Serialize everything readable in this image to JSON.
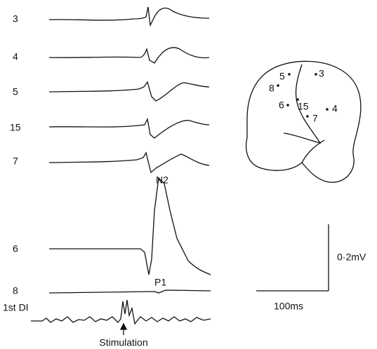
{
  "traces": [
    {
      "label": "3"
    },
    {
      "label": "4"
    },
    {
      "label": "5"
    },
    {
      "label": "15"
    },
    {
      "label": "7"
    },
    {
      "label": "6"
    },
    {
      "label": "8"
    },
    {
      "label": "1st DI"
    }
  ],
  "peaks": {
    "n2": "N2",
    "p1": "P1"
  },
  "stimulation": "Stimulation",
  "scale": {
    "voltage": "0·2mV",
    "time": "100ms"
  },
  "brain_sites": [
    "5",
    "3",
    "8",
    "6",
    "15",
    "4",
    "7"
  ]
}
